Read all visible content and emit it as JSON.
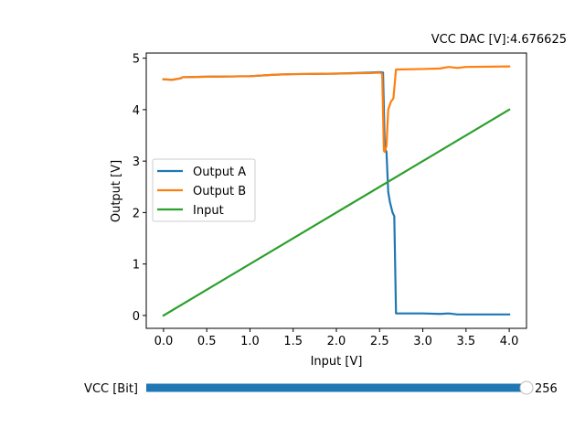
{
  "chart_data": {
    "type": "line",
    "title": "VCC DAC [V]:4.676625",
    "xlabel": "Input [V]",
    "ylabel": "Output [V]",
    "xlim": [
      -0.2,
      4.2
    ],
    "ylim": [
      -0.25,
      5.1
    ],
    "xticks": [
      0.0,
      0.5,
      1.0,
      1.5,
      2.0,
      2.5,
      3.0,
      3.5,
      4.0
    ],
    "xtick_labels": [
      "0.0",
      "0.5",
      "1.0",
      "1.5",
      "2.0",
      "2.5",
      "3.0",
      "3.5",
      "4.0"
    ],
    "yticks": [
      0,
      1,
      2,
      3,
      4,
      5
    ],
    "ytick_labels": [
      "0",
      "1",
      "2",
      "3",
      "4",
      "5"
    ],
    "grid": false,
    "legend_position": "center-left",
    "series": [
      {
        "name": "Output A",
        "color": "#1f77b4",
        "points": [
          [
            0.0,
            4.59
          ],
          [
            0.1,
            4.58
          ],
          [
            0.2,
            4.61
          ],
          [
            0.22,
            4.63
          ],
          [
            0.5,
            4.64
          ],
          [
            1.0,
            4.65
          ],
          [
            1.3,
            4.68
          ],
          [
            1.5,
            4.69
          ],
          [
            2.0,
            4.7
          ],
          [
            2.4,
            4.72
          ],
          [
            2.5,
            4.73
          ],
          [
            2.54,
            4.72
          ],
          [
            2.56,
            3.25
          ],
          [
            2.58,
            3.18
          ],
          [
            2.6,
            2.4
          ],
          [
            2.62,
            2.2
          ],
          [
            2.65,
            2.0
          ],
          [
            2.67,
            1.93
          ],
          [
            2.69,
            0.04
          ],
          [
            3.0,
            0.04
          ],
          [
            3.2,
            0.03
          ],
          [
            3.3,
            0.04
          ],
          [
            3.4,
            0.02
          ],
          [
            3.5,
            0.02
          ],
          [
            4.0,
            0.02
          ]
        ]
      },
      {
        "name": "Output B",
        "color": "#ff7f0e",
        "points": [
          [
            0.0,
            4.59
          ],
          [
            0.1,
            4.58
          ],
          [
            0.2,
            4.61
          ],
          [
            0.22,
            4.63
          ],
          [
            0.5,
            4.64
          ],
          [
            1.0,
            4.65
          ],
          [
            1.3,
            4.68
          ],
          [
            1.5,
            4.69
          ],
          [
            2.0,
            4.7
          ],
          [
            2.4,
            4.71
          ],
          [
            2.5,
            4.72
          ],
          [
            2.53,
            4.7
          ],
          [
            2.55,
            3.2
          ],
          [
            2.56,
            3.18
          ],
          [
            2.58,
            3.3
          ],
          [
            2.6,
            4.0
          ],
          [
            2.63,
            4.15
          ],
          [
            2.66,
            4.22
          ],
          [
            2.69,
            4.78
          ],
          [
            3.0,
            4.79
          ],
          [
            3.2,
            4.8
          ],
          [
            3.3,
            4.83
          ],
          [
            3.4,
            4.81
          ],
          [
            3.5,
            4.83
          ],
          [
            4.0,
            4.84
          ]
        ]
      },
      {
        "name": "Input",
        "color": "#2ca02c",
        "points": [
          [
            0.0,
            0.0
          ],
          [
            4.0,
            4.0
          ]
        ]
      }
    ]
  },
  "slider": {
    "label": "VCC [Bit]",
    "value": 256,
    "value_text": "256",
    "min": 0,
    "max": 256,
    "track_color": "#1f77b4"
  }
}
